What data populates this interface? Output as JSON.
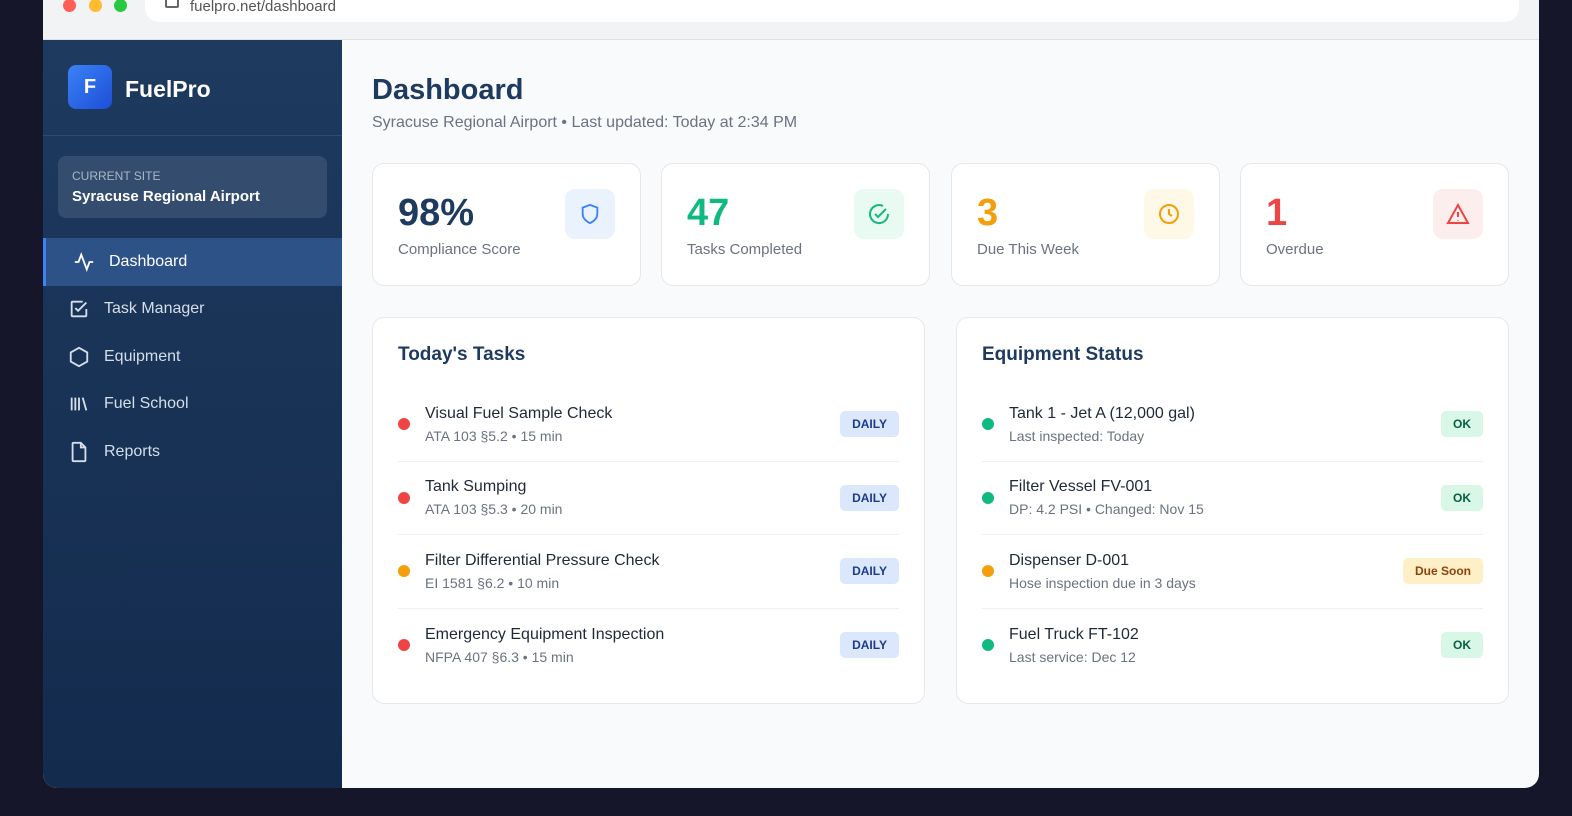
{
  "browser": {
    "url": "fuelpro.net/dashboard"
  },
  "sidebar": {
    "logo_letter": "F",
    "brand": "FuelPro",
    "site_label": "CURRENT SITE",
    "site_name": "Syracuse Regional Airport",
    "items": [
      {
        "label": "Dashboard",
        "icon": "activity-icon",
        "active": true
      },
      {
        "label": "Task Manager",
        "icon": "checkbox-icon"
      },
      {
        "label": "Equipment",
        "icon": "hexagon-icon"
      },
      {
        "label": "Fuel School",
        "icon": "library-icon"
      },
      {
        "label": "Reports",
        "icon": "file-icon"
      }
    ]
  },
  "header": {
    "title": "Dashboard",
    "subtitle": "Syracuse Regional Airport • Last updated: Today at 2:34 PM"
  },
  "stats": [
    {
      "value": "98%",
      "label": "Compliance Score",
      "color": "#1e3a5f",
      "icon": "shield-icon"
    },
    {
      "value": "47",
      "label": "Tasks Completed",
      "color": "#10b981",
      "icon": "check-circle-icon"
    },
    {
      "value": "3",
      "label": "Due This Week",
      "color": "#f59e0b",
      "icon": "clock-icon"
    },
    {
      "value": "1",
      "label": "Overdue",
      "color": "#ef4444",
      "icon": "alert-triangle-icon"
    }
  ],
  "tasks": {
    "title": "Today's Tasks",
    "items": [
      {
        "name": "Visual Fuel Sample Check",
        "meta": "ATA 103 §5.2 • 15 min",
        "badge": "DAILY",
        "status": "#ef4444"
      },
      {
        "name": "Tank Sumping",
        "meta": "ATA 103 §5.3 • 20 min",
        "badge": "DAILY",
        "status": "#ef4444"
      },
      {
        "name": "Filter Differential Pressure Check",
        "meta": "EI 1581 §6.2 • 10 min",
        "badge": "DAILY",
        "status": "#f59e0b"
      },
      {
        "name": "Emergency Equipment Inspection",
        "meta": "NFPA 407 §6.3 • 15 min",
        "badge": "DAILY",
        "status": "#ef4444"
      }
    ]
  },
  "equipment": {
    "title": "Equipment Status",
    "items": [
      {
        "name": "Tank 1 - Jet A (12,000 gal)",
        "meta": "Last inspected: Today",
        "badge": "OK",
        "status": "#10b981"
      },
      {
        "name": "Filter Vessel FV-001",
        "meta": "DP: 4.2 PSI • Changed: Nov 15",
        "badge": "OK",
        "status": "#10b981"
      },
      {
        "name": "Dispenser D-001",
        "meta": "Hose inspection due in 3 days",
        "badge": "Due Soon",
        "status": "#f59e0b"
      },
      {
        "name": "Fuel Truck FT-102",
        "meta": "Last service: Dec 12",
        "badge": "OK",
        "status": "#10b981"
      }
    ]
  }
}
